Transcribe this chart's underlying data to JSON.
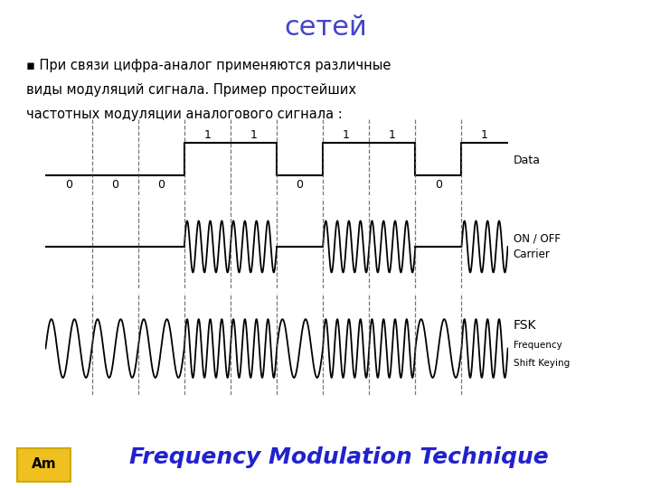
{
  "title": "сетей",
  "title_color": "#4444cc",
  "title_fontsize": 22,
  "bullet_char": "▪",
  "bullet_line1": "При связи цифра-аналог применяются различные",
  "bullet_line2": "виды модуляций сигнала. Пример простейших",
  "bullet_line3": "частотных модуляции аналогового сигнала :",
  "footer_text": "Frequency Modulation Technique",
  "footer_color": "#2222cc",
  "footer_fontsize": 18,
  "bg_color": "#ffffff",
  "data_bits": [
    0,
    0,
    0,
    1,
    1,
    0,
    1,
    1,
    0,
    1
  ],
  "bit_period": 1.0,
  "carrier_freq_high": 4.0,
  "carrier_freq_low": 2.0,
  "fsk_freq_high": 4.0,
  "fsk_freq_low": 2.0,
  "signal_color": "#000000",
  "dashed_color": "#555555",
  "label_data": "Data",
  "label_carrier_1": "ON / OFF",
  "label_carrier_2": "Carrier",
  "label_fsk_1": "FSK",
  "label_fsk_2": "Frequency",
  "label_fsk_3": "Shift Keying"
}
